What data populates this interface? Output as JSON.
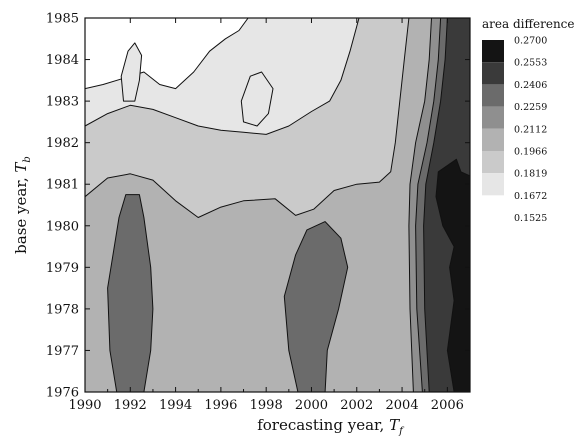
{
  "chart_data": {
    "type": "contour",
    "xlabel": "forecasting year, ",
    "xlabel_sub": "f",
    "xlabel_var": "T",
    "ylabel": "base year, ",
    "ylabel_var": "T",
    "ylabel_sub": "b",
    "xlim": [
      1990,
      2007
    ],
    "ylim": [
      1976,
      1985
    ],
    "x_ticks": [
      1990,
      1992,
      1994,
      1996,
      1998,
      2000,
      2002,
      2004,
      2006
    ],
    "y_ticks": [
      1976,
      1977,
      1978,
      1979,
      1980,
      1981,
      1982,
      1983,
      1984,
      1985
    ],
    "legend": {
      "title": "area difference",
      "levels": [
        "0.2700",
        "0.2553",
        "0.2406",
        "0.2259",
        "0.2112",
        "0.1966",
        "0.1819",
        "0.1672",
        "0.1525"
      ],
      "colors": [
        "#141414",
        "#3a3a3a",
        "#6b6b6b",
        "#8f8f8f",
        "#b2b2b2",
        "#cacaca",
        "#e6e6e6",
        "#ffffff"
      ]
    },
    "regions": [
      {
        "name": "band-1966-2112",
        "fill": "#cacaca",
        "points": [
          [
            1990,
            1976
          ],
          [
            2004.3,
            1976
          ],
          [
            2004.2,
            1978
          ],
          [
            2004.2,
            1980
          ],
          [
            2004.1,
            1981
          ],
          [
            2004.3,
            1982
          ],
          [
            2004.8,
            1983
          ],
          [
            2005.4,
            1984
          ],
          [
            2005.6,
            1985
          ],
          [
            1990,
            1985
          ]
        ]
      },
      {
        "name": "band-2112-2259-lower",
        "fill": "#b2b2b2",
        "points": [
          [
            1990,
            1976
          ],
          [
            1990,
            1980.7
          ],
          [
            1991,
            1981.15
          ],
          [
            1992,
            1981.25
          ],
          [
            1993,
            1981.1
          ],
          [
            1994,
            1980.6
          ],
          [
            1995,
            1980.2
          ],
          [
            1996,
            1980.45
          ],
          [
            1997,
            1980.6
          ],
          [
            1998.4,
            1980.65
          ],
          [
            1999.3,
            1980.25
          ],
          [
            2000.1,
            1980.4
          ],
          [
            2001,
            1980.85
          ],
          [
            2002,
            1981.0
          ],
          [
            2003,
            1981.05
          ],
          [
            2003.5,
            1981.3
          ],
          [
            2003.7,
            1982
          ],
          [
            2003.9,
            1983
          ],
          [
            2004.1,
            1984
          ],
          [
            2004.3,
            1985
          ],
          [
            2007,
            1985
          ],
          [
            2007,
            1976
          ]
        ]
      },
      {
        "name": "cap-2112-2259-top",
        "fill": "#b2b2b2",
        "points": [
          [
            1999.7,
            1985
          ],
          [
            1999.8,
            1984.2
          ],
          [
            2000.2,
            1984.05
          ],
          [
            2000.5,
            1984.5
          ],
          [
            2000.6,
            1985
          ]
        ]
      },
      {
        "name": "band-2259-2406",
        "fill": "#8f8f8f",
        "points": [
          [
            2004.5,
            1976
          ],
          [
            2004.35,
            1978
          ],
          [
            2004.3,
            1980
          ],
          [
            2004.35,
            1981
          ],
          [
            2004.6,
            1982
          ],
          [
            2005.0,
            1983
          ],
          [
            2005.2,
            1984
          ],
          [
            2005.3,
            1985
          ],
          [
            2007,
            1985
          ],
          [
            2007,
            1976
          ]
        ]
      },
      {
        "name": "band-2406-2553",
        "fill": "#6b6b6b",
        "points": [
          [
            2004.9,
            1976
          ],
          [
            2004.65,
            1978
          ],
          [
            2004.6,
            1980
          ],
          [
            2004.7,
            1981
          ],
          [
            2005.1,
            1982
          ],
          [
            2005.4,
            1983
          ],
          [
            2005.6,
            1984
          ],
          [
            2005.7,
            1985
          ],
          [
            2007,
            1985
          ],
          [
            2007,
            1976
          ]
        ]
      },
      {
        "name": "blob-2406-2553-a",
        "fill": "#6b6b6b",
        "points": [
          [
            1991.4,
            1976
          ],
          [
            1991.1,
            1977
          ],
          [
            1991.0,
            1978.5
          ],
          [
            1991.5,
            1980.2
          ],
          [
            1991.8,
            1980.75
          ],
          [
            1992.4,
            1980.75
          ],
          [
            1992.6,
            1980.2
          ],
          [
            1992.9,
            1979
          ],
          [
            1993.0,
            1978
          ],
          [
            1992.9,
            1977
          ],
          [
            1992.6,
            1976
          ]
        ]
      },
      {
        "name": "blob-2406-2553-b",
        "fill": "#6b6b6b",
        "points": [
          [
            1999.4,
            1976
          ],
          [
            1999.0,
            1977
          ],
          [
            1998.8,
            1978.3
          ],
          [
            1999.3,
            1979.3
          ],
          [
            1999.8,
            1979.9
          ],
          [
            2000.6,
            1980.1
          ],
          [
            2001.3,
            1979.7
          ],
          [
            2001.6,
            1979.0
          ],
          [
            2001.2,
            1978.0
          ],
          [
            2000.7,
            1977
          ],
          [
            2000.6,
            1976
          ]
        ]
      },
      {
        "name": "band-2553-2700",
        "fill": "#3a3a3a",
        "points": [
          [
            2005.2,
            1976
          ],
          [
            2005.0,
            1978
          ],
          [
            2004.95,
            1980
          ],
          [
            2005.05,
            1981
          ],
          [
            2005.4,
            1982
          ],
          [
            2005.7,
            1983
          ],
          [
            2005.9,
            1984
          ],
          [
            2006.0,
            1985
          ],
          [
            2007,
            1985
          ],
          [
            2007,
            1976
          ]
        ]
      },
      {
        "name": "band-above-2700",
        "fill": "#141414",
        "points": [
          [
            2006.3,
            1976
          ],
          [
            2006.0,
            1977
          ],
          [
            2006.3,
            1978.2
          ],
          [
            2006.1,
            1979
          ],
          [
            2006.3,
            1979.5
          ],
          [
            2005.8,
            1980
          ],
          [
            2005.5,
            1980.7
          ],
          [
            2005.6,
            1981.3
          ],
          [
            2006.4,
            1981.6
          ],
          [
            2006.6,
            1981.3
          ],
          [
            2007,
            1981.2
          ],
          [
            2007,
            1976
          ]
        ]
      },
      {
        "name": "band-1819-1966",
        "fill": "#e6e6e6",
        "points": [
          [
            1990,
            1982.4
          ],
          [
            1991,
            1982.7
          ],
          [
            1992,
            1982.9
          ],
          [
            1993,
            1982.8
          ],
          [
            1994,
            1982.6
          ],
          [
            1995,
            1982.4
          ],
          [
            1996,
            1982.3
          ],
          [
            1997,
            1982.25
          ],
          [
            1998,
            1982.2
          ],
          [
            1999,
            1982.4
          ],
          [
            2000,
            1982.75
          ],
          [
            2000.8,
            1983.0
          ],
          [
            2001.3,
            1983.5
          ],
          [
            2001.7,
            1984.2
          ],
          [
            2002.1,
            1985
          ],
          [
            1990,
            1985
          ]
        ]
      },
      {
        "name": "band-1672-1819",
        "fill": "#ffffff",
        "points": [
          [
            1990,
            1983.3
          ],
          [
            1990.8,
            1983.4
          ],
          [
            1991.7,
            1983.55
          ],
          [
            1992.6,
            1983.7
          ],
          [
            1993.3,
            1983.4
          ],
          [
            1994,
            1983.3
          ],
          [
            1994.8,
            1983.7
          ],
          [
            1995.5,
            1984.2
          ],
          [
            1996.2,
            1984.5
          ],
          [
            1996.8,
            1984.7
          ],
          [
            1997.2,
            1985
          ],
          [
            1990,
            1985
          ]
        ]
      },
      {
        "name": "island-1819-1966",
        "fill": "#e6e6e6",
        "points": [
          [
            1991.7,
            1983.0
          ],
          [
            1991.6,
            1983.6
          ],
          [
            1991.9,
            1984.2
          ],
          [
            1992.2,
            1984.4
          ],
          [
            1992.5,
            1984.1
          ],
          [
            1992.4,
            1983.5
          ],
          [
            1992.2,
            1983.0
          ]
        ]
      },
      {
        "name": "island-1819-1966-b",
        "fill": "#e6e6e6",
        "points": [
          [
            1997.0,
            1982.5
          ],
          [
            1996.9,
            1983.0
          ],
          [
            1997.3,
            1983.6
          ],
          [
            1997.8,
            1983.7
          ],
          [
            1998.3,
            1983.3
          ],
          [
            1998.1,
            1982.7
          ],
          [
            1997.6,
            1982.4
          ]
        ]
      }
    ]
  }
}
